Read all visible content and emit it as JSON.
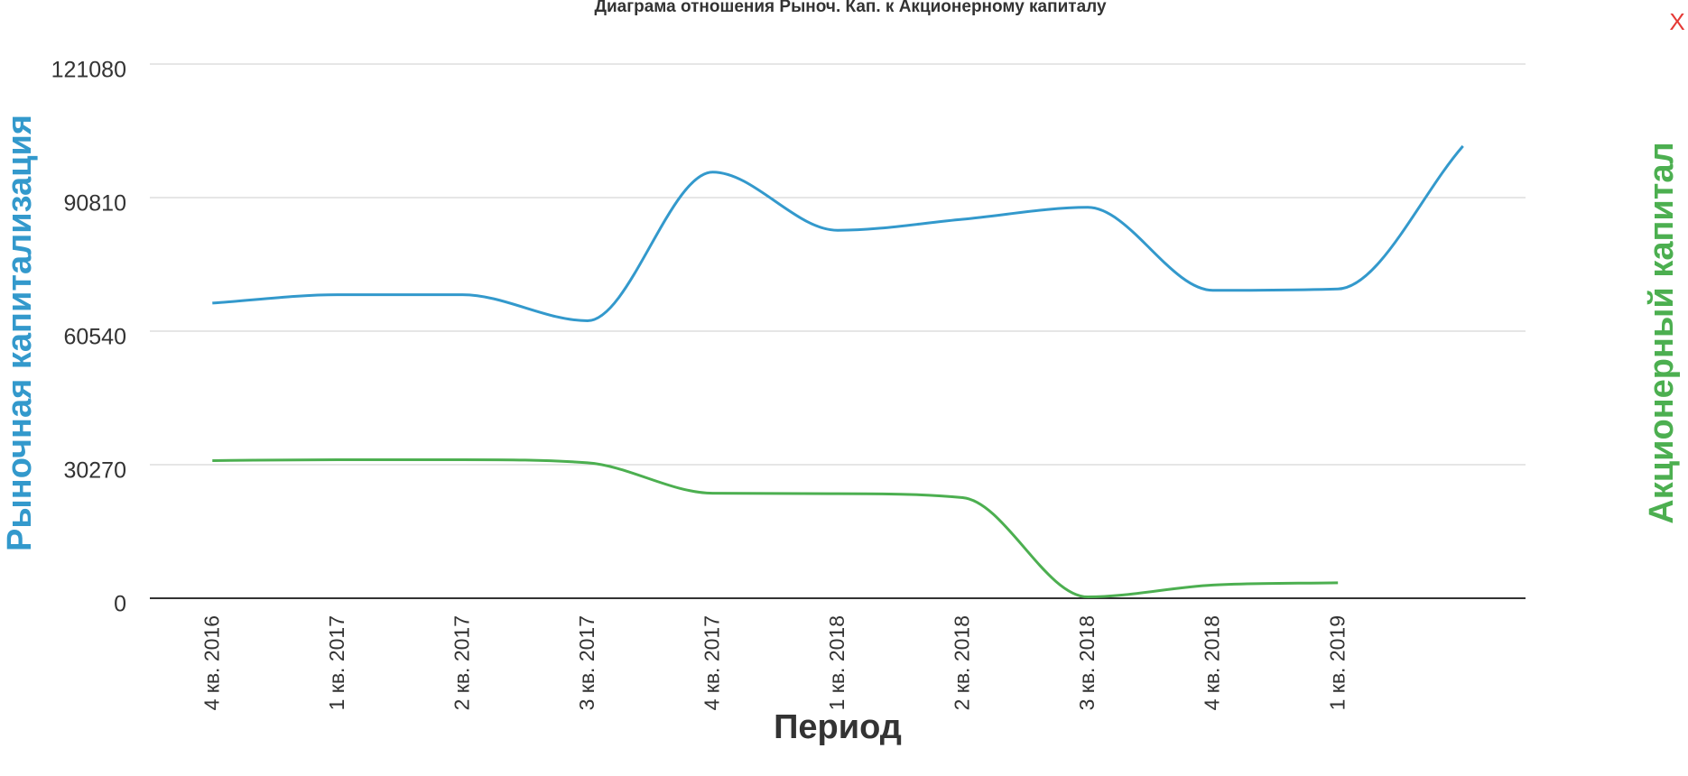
{
  "chart_data": {
    "type": "line",
    "title": "Диаграма отношения Рыноч. Кап. к Акционерному капиталу",
    "x_title": "Период",
    "y_title": "Рыночная капитализация",
    "y2_title": "Акционерный капитал",
    "categories": [
      "4 кв. 2016",
      "1 кв. 2017",
      "2 кв. 2017",
      "3 кв. 2017",
      "4 кв. 2017",
      "1 кв. 2018",
      "2 кв. 2018",
      "3 кв. 2018",
      "4 кв. 2018",
      "1 кв. 2019",
      null
    ],
    "series": [
      {
        "name": "Рыночная капитализация",
        "color": "#3399cc",
        "values": [
          66900,
          68800,
          68800,
          62900,
          96600,
          83400,
          85900,
          88600,
          69800,
          70100,
          102500
        ]
      },
      {
        "name": "Акционерный капитал",
        "color": "#4caf50",
        "values": [
          31200,
          31400,
          31400,
          30700,
          23800,
          23700,
          22800,
          300,
          3000,
          3500,
          null
        ]
      }
    ],
    "ylim": [
      0,
      121080
    ],
    "yticks": [
      0,
      30270,
      60540,
      90810,
      121080
    ],
    "grid": true
  },
  "close_button": "X"
}
